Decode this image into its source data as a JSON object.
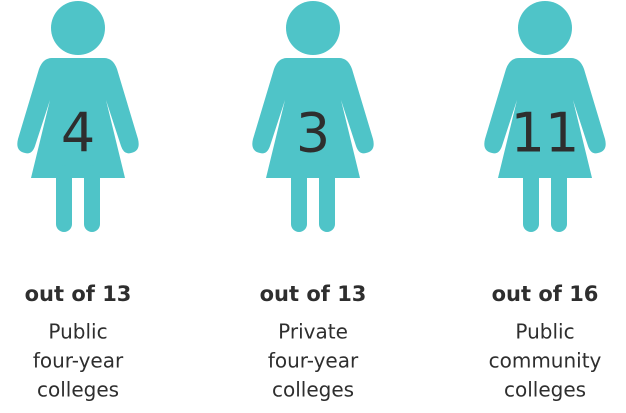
{
  "items": [
    {
      "count": 4,
      "total": "out of 13",
      "label": [
        "Public",
        "four-year",
        "colleges"
      ]
    },
    {
      "count": 3,
      "total": "out of 13",
      "label": [
        "Private",
        "four-year",
        "colleges"
      ]
    },
    {
      "count": 11,
      "total": "out of 16",
      "label": [
        "Public",
        "community",
        "colleges"
      ]
    }
  ]
}
